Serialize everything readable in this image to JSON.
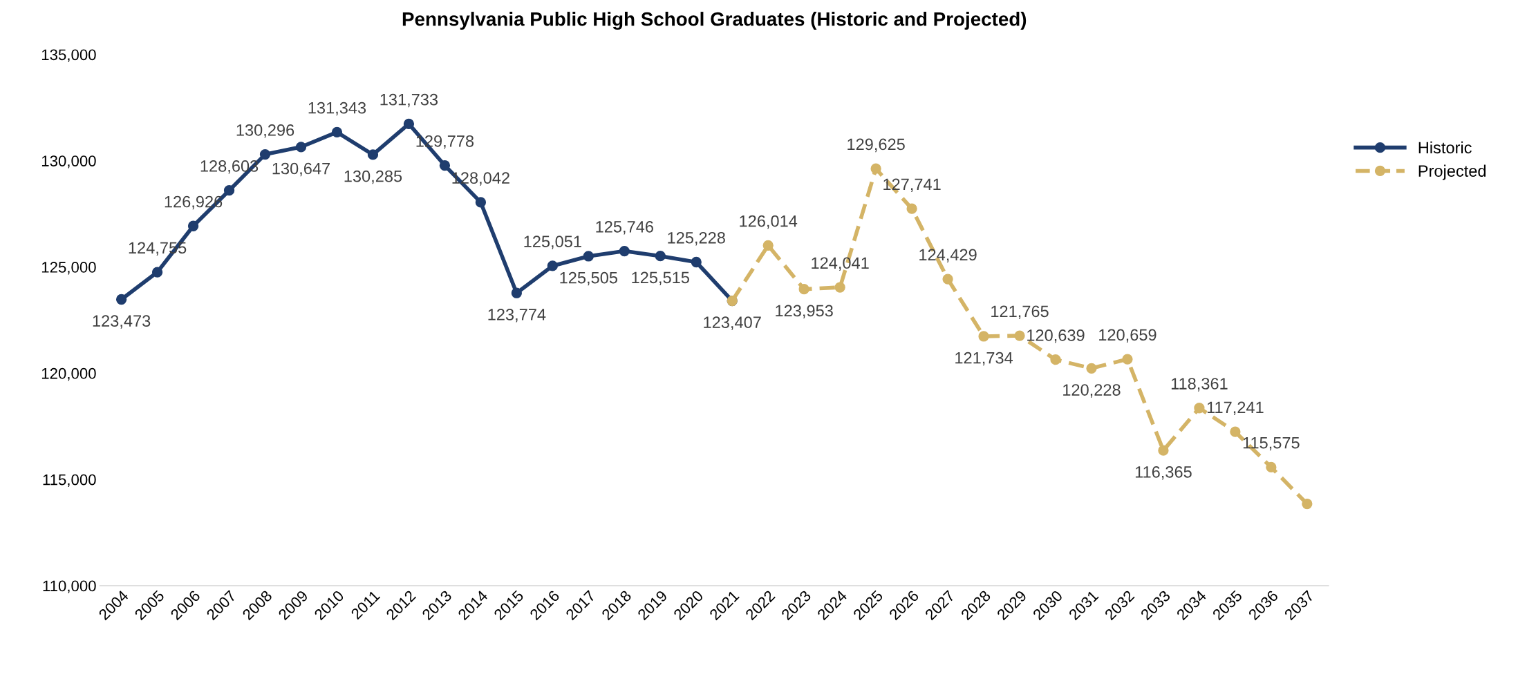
{
  "chart_data": {
    "type": "line",
    "title": "Pennsylvania Public High School Graduates (Historic and Projected)",
    "categories": [
      "2004",
      "2005",
      "2006",
      "2007",
      "2008",
      "2009",
      "2010",
      "2011",
      "2012",
      "2013",
      "2014",
      "2015",
      "2016",
      "2017",
      "2018",
      "2019",
      "2020",
      "2021",
      "2022",
      "2023",
      "2024",
      "2025",
      "2026",
      "2027",
      "2028",
      "2029",
      "2030",
      "2031",
      "2032",
      "2033",
      "2034",
      "2035",
      "2036",
      "2037"
    ],
    "series": [
      {
        "name": "Historic",
        "color": "#1f3d6e",
        "line_style": "solid",
        "values": [
          123473,
          124755,
          126926,
          128603,
          130296,
          130647,
          131343,
          130285,
          131733,
          129778,
          128042,
          123774,
          125051,
          125505,
          125746,
          125515,
          125228,
          123407,
          null,
          null,
          null,
          null,
          null,
          null,
          null,
          null,
          null,
          null,
          null,
          null,
          null,
          null,
          null,
          null
        ],
        "value_labels": [
          "123,473",
          "124,755",
          "126,926",
          "128,603",
          "130,296",
          "130,647",
          "131,343",
          "130,285",
          "131,733",
          "129,778",
          "128,042",
          "123,774",
          "125,051",
          "125,505",
          "125,746",
          "125,515",
          "125,228",
          "123,407",
          null,
          null,
          null,
          null,
          null,
          null,
          null,
          null,
          null,
          null,
          null,
          null,
          null,
          null,
          null,
          null
        ]
      },
      {
        "name": "Projected",
        "color": "#d4b466",
        "line_style": "dashed",
        "values": [
          null,
          null,
          null,
          null,
          null,
          null,
          null,
          null,
          null,
          null,
          null,
          null,
          null,
          null,
          null,
          null,
          null,
          123407,
          126014,
          123953,
          124041,
          129625,
          127741,
          124429,
          121734,
          121765,
          120639,
          120228,
          120659,
          116365,
          118361,
          117241,
          115575,
          113850
        ],
        "value_labels": [
          null,
          null,
          null,
          null,
          null,
          null,
          null,
          null,
          null,
          null,
          null,
          null,
          null,
          null,
          null,
          null,
          null,
          null,
          "126,014",
          "123,953",
          "124,041",
          "129,625",
          "127,741",
          "124,429",
          "121,734",
          "121,765",
          "120,639",
          "120,228",
          "120,659",
          "116,365",
          "118,361",
          "117,241",
          "115,575",
          null
        ]
      }
    ],
    "ylim": [
      110000,
      135000
    ],
    "yticks": [
      {
        "value": 110000,
        "label": "110,000"
      },
      {
        "value": 115000,
        "label": "115,000"
      },
      {
        "value": 120000,
        "label": "120,000"
      },
      {
        "value": 125000,
        "label": "125,000"
      },
      {
        "value": 130000,
        "label": "130,000"
      },
      {
        "value": 135000,
        "label": "135,000"
      }
    ],
    "marker": "circle",
    "grid": false,
    "legend": "right"
  }
}
